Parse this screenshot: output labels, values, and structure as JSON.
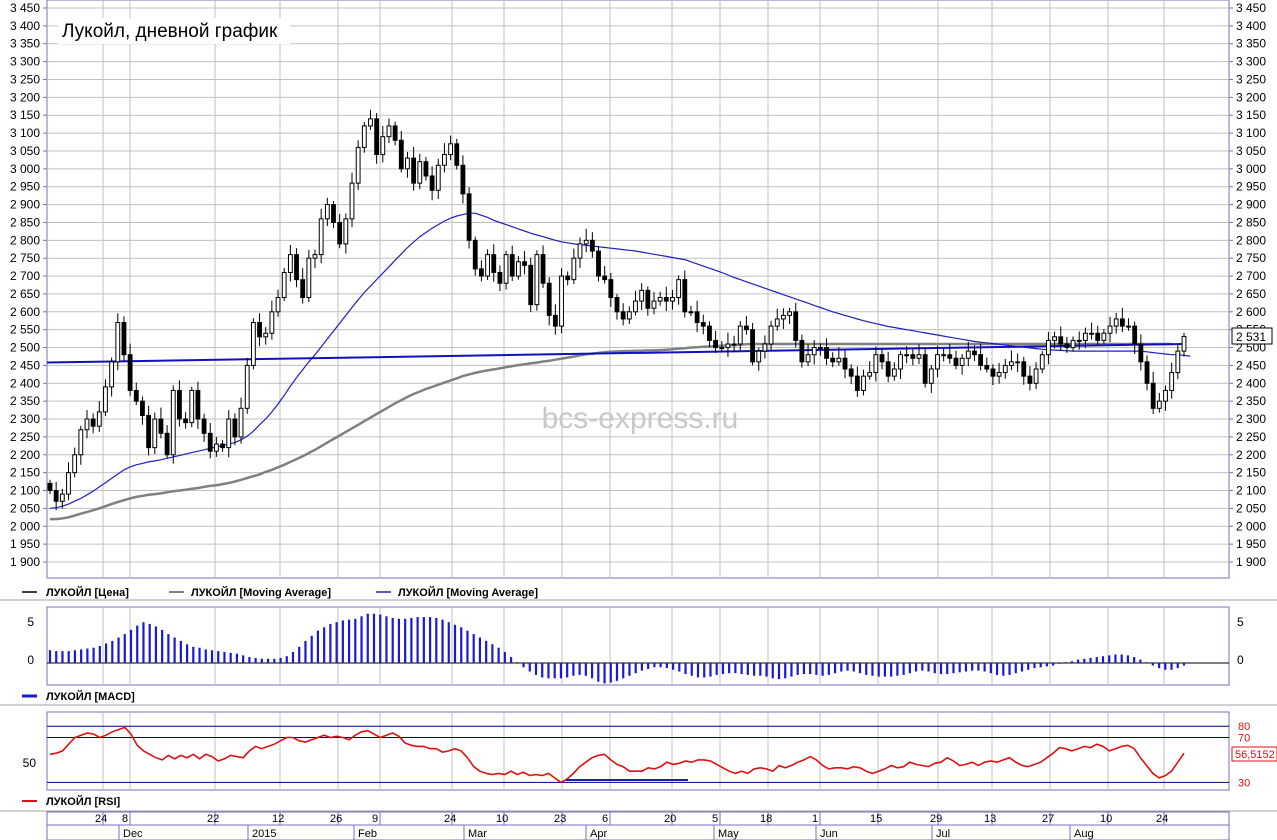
{
  "title": "Лукойл, дневной график",
  "watermark": "bcs-express.ru",
  "colors": {
    "grid": "#c0c0c0",
    "axis": "#7070c0",
    "ma_long": "#808080",
    "ma_short": "#2020c0",
    "trend": "#1010c0",
    "macd": "#1a1ad0",
    "rsi": "#dd1111",
    "rsi_ref": "#000080",
    "candle": "#000000",
    "watermark": "#c8c8c8"
  },
  "chart_data": [
    {
      "type": "candlestick",
      "title": "Лукойл, дневной график",
      "ylim": [
        1900,
        3450
      ],
      "y_ticks": [
        "1 900",
        "1 950",
        "2 000",
        "2 050",
        "2 100",
        "2 150",
        "2 200",
        "2 250",
        "2 300",
        "2 350",
        "2 400",
        "2 450",
        "2 500",
        "2 550",
        "2 600",
        "2 650",
        "2 700",
        "2 750",
        "2 800",
        "2 850",
        "2 900",
        "2 950",
        "3 000",
        "3 050",
        "3 100",
        "3 150",
        "3 200",
        "3 250",
        "3 300",
        "3 350",
        "3 400",
        "3 450"
      ],
      "last_price_label": "2 531",
      "legend": [
        "ЛУКОЙЛ [Цена]",
        "ЛУКОЙЛ [Moving Average]",
        "ЛУКОЙЛ [Moving Average]"
      ],
      "closes": [
        2100,
        2070,
        2090,
        2150,
        2200,
        2270,
        2300,
        2280,
        2320,
        2390,
        2460,
        2570,
        2480,
        2380,
        2350,
        2310,
        2220,
        2300,
        2260,
        2200,
        2380,
        2300,
        2290,
        2380,
        2300,
        2260,
        2210,
        2230,
        2220,
        2300,
        2250,
        2330,
        2450,
        2570,
        2530,
        2540,
        2600,
        2640,
        2710,
        2760,
        2690,
        2640,
        2750,
        2760,
        2860,
        2900,
        2850,
        2790,
        2860,
        2960,
        3060,
        3120,
        3140,
        3040,
        3090,
        3120,
        3080,
        3000,
        3030,
        2960,
        3020,
        2980,
        2940,
        3010,
        3040,
        3070,
        3010,
        2930,
        2800,
        2720,
        2700,
        2760,
        2710,
        2680,
        2760,
        2700,
        2740,
        2730,
        2620,
        2760,
        2680,
        2590,
        2560,
        2700,
        2690,
        2750,
        2790,
        2800,
        2770,
        2700,
        2690,
        2640,
        2600,
        2580,
        2600,
        2630,
        2660,
        2610,
        2630,
        2640,
        2630,
        2640,
        2690,
        2600,
        2600,
        2570,
        2560,
        2520,
        2500,
        2500,
        2510,
        2510,
        2560,
        2550,
        2460,
        2490,
        2510,
        2560,
        2580,
        2590,
        2600,
        2520,
        2460,
        2480,
        2500,
        2500,
        2470,
        2460,
        2470,
        2440,
        2420,
        2380,
        2420,
        2430,
        2480,
        2460,
        2420,
        2440,
        2480,
        2480,
        2470,
        2480,
        2400,
        2440,
        2480,
        2480,
        2470,
        2450,
        2470,
        2490,
        2480,
        2450,
        2440,
        2420,
        2430,
        2450,
        2460,
        2460,
        2420,
        2400,
        2440,
        2480,
        2520,
        2530,
        2510,
        2500,
        2520,
        2520,
        2540,
        2540,
        2520,
        2540,
        2560,
        2580,
        2560,
        2560,
        2510,
        2460,
        2400,
        2330,
        2350,
        2380,
        2430,
        2490,
        2531
      ],
      "sma200": [
        2020,
        2020,
        2022,
        2025,
        2030,
        2035,
        2040,
        2045,
        2050,
        2056,
        2062,
        2068,
        2073,
        2078,
        2082,
        2085,
        2088,
        2090,
        2092,
        2095,
        2098,
        2100,
        2102,
        2105,
        2107,
        2110,
        2113,
        2115,
        2118,
        2121,
        2125,
        2130,
        2135,
        2140,
        2145,
        2152,
        2158,
        2165,
        2172,
        2180,
        2188,
        2196,
        2205,
        2214,
        2224,
        2234,
        2244,
        2254,
        2264,
        2274,
        2284,
        2294,
        2304,
        2314,
        2324,
        2334,
        2344,
        2353,
        2362,
        2370,
        2377,
        2384,
        2390,
        2396,
        2402,
        2408,
        2414,
        2420,
        2425,
        2429,
        2433,
        2436,
        2439,
        2442,
        2445,
        2448,
        2451,
        2453,
        2456,
        2458,
        2461,
        2463,
        2466,
        2469,
        2472,
        2475,
        2478,
        2481,
        2483,
        2485,
        2487,
        2488,
        2489,
        2490,
        2490,
        2491,
        2491,
        2492,
        2492,
        2493,
        2494,
        2495,
        2497,
        2498,
        2500,
        2501,
        2502,
        2503,
        2504,
        2505,
        2506,
        2507,
        2508,
        2509,
        2510,
        2510,
        2510,
        2510,
        2510,
        2510,
        2510,
        2510,
        2510,
        2510,
        2510,
        2510,
        2510,
        2510,
        2510,
        2510,
        2510,
        2510,
        2510,
        2510,
        2510,
        2510,
        2510,
        2510,
        2510,
        2510,
        2510,
        2510,
        2510,
        2510,
        2510,
        2510,
        2510,
        2510,
        2510,
        2510,
        2510,
        2510,
        2510,
        2510,
        2510,
        2510,
        2510,
        2510,
        2510,
        2510,
        2510,
        2510,
        2510,
        2510,
        2510,
        2510,
        2510,
        2510,
        2510,
        2510,
        2510,
        2510,
        2510,
        2510,
        2510,
        2510,
        2510,
        2510,
        2510,
        2510,
        2510,
        2510,
        2510
      ],
      "sma50": [
        2050,
        2052,
        2056,
        2062,
        2070,
        2078,
        2088,
        2098,
        2110,
        2122,
        2134,
        2146,
        2158,
        2166,
        2172,
        2176,
        2180,
        2183,
        2186,
        2190,
        2194,
        2198,
        2202,
        2206,
        2210,
        2214,
        2218,
        2222,
        2226,
        2230,
        2234,
        2242,
        2252,
        2266,
        2284,
        2300,
        2320,
        2342,
        2366,
        2392,
        2416,
        2438,
        2460,
        2480,
        2502,
        2524,
        2546,
        2568,
        2590,
        2612,
        2634,
        2654,
        2672,
        2690,
        2708,
        2726,
        2744,
        2762,
        2780,
        2795,
        2810,
        2822,
        2834,
        2844,
        2854,
        2862,
        2868,
        2872,
        2876,
        2876,
        2870,
        2864,
        2856,
        2850,
        2844,
        2838,
        2832,
        2826,
        2820,
        2815,
        2810,
        2805,
        2800,
        2796,
        2793,
        2790,
        2788,
        2786,
        2784,
        2782,
        2780,
        2778,
        2776,
        2774,
        2772,
        2770,
        2767,
        2764,
        2761,
        2758,
        2755,
        2752,
        2749,
        2746,
        2740,
        2734,
        2728,
        2722,
        2716,
        2710,
        2703,
        2696,
        2690,
        2684,
        2678,
        2672,
        2666,
        2660,
        2654,
        2648,
        2642,
        2636,
        2630,
        2624,
        2618,
        2612,
        2606,
        2600,
        2595,
        2590,
        2585,
        2580,
        2575,
        2571,
        2567,
        2563,
        2559,
        2556,
        2553,
        2550,
        2547,
        2544,
        2541,
        2538,
        2535,
        2532,
        2529,
        2526,
        2523,
        2520,
        2517,
        2515,
        2513,
        2511,
        2509,
        2507,
        2505,
        2503,
        2501,
        2499,
        2497,
        2495,
        2494,
        2493,
        2492,
        2491,
        2490,
        2490,
        2490,
        2490,
        2490,
        2490,
        2490,
        2490,
        2490,
        2490,
        2490,
        2490,
        2488,
        2486,
        2484,
        2482,
        2480,
        2480,
        2478,
        2476
      ],
      "trendline": [
        2458,
        2510
      ]
    },
    {
      "type": "bar",
      "title": "",
      "legend": [
        "ЛУКОЙЛ [MACD]"
      ],
      "y_ticks": [
        "5",
        "0"
      ],
      "ylim": [
        -2,
        6
      ],
      "values": [
        1.5,
        1.4,
        1.4,
        1.4,
        1.5,
        1.6,
        1.7,
        1.8,
        2.0,
        2.3,
        2.6,
        3.0,
        3.4,
        3.9,
        4.4,
        4.8,
        4.6,
        4.3,
        3.9,
        3.4,
        3.0,
        2.6,
        2.2,
        1.9,
        1.8,
        1.6,
        1.5,
        1.4,
        1.3,
        1.2,
        1.1,
        0.9,
        0.7,
        0.6,
        0.5,
        0.5,
        0.5,
        0.6,
        0.8,
        1.3,
        1.9,
        2.6,
        3.2,
        3.8,
        4.2,
        4.6,
        4.8,
        5.0,
        5.1,
        5.2,
        5.5,
        5.8,
        5.8,
        5.7,
        5.5,
        5.3,
        5.2,
        5.2,
        5.3,
        5.4,
        5.4,
        5.4,
        5.3,
        5.1,
        4.8,
        4.5,
        4.2,
        3.8,
        3.4,
        3.0,
        2.6,
        2.2,
        1.8,
        1.3,
        0.7,
        0.1,
        -0.5,
        -1.0,
        -1.4,
        -1.7,
        -1.8,
        -1.8,
        -1.8,
        -1.7,
        -1.5,
        -1.4,
        -1.5,
        -1.8,
        -2.2,
        -2.4,
        -2.3,
        -2.1,
        -1.8,
        -1.5,
        -1.2,
        -0.9,
        -0.7,
        -0.5,
        -0.5,
        -0.6,
        -0.8,
        -1.0,
        -1.3,
        -1.5,
        -1.7,
        -1.7,
        -1.6,
        -1.4,
        -1.3,
        -1.2,
        -1.2,
        -1.3,
        -1.4,
        -1.5,
        -1.5,
        -1.6,
        -1.8,
        -1.9,
        -1.8,
        -1.6,
        -1.4,
        -1.3,
        -1.3,
        -1.4,
        -1.5,
        -1.4,
        -1.2,
        -1.0,
        -0.9,
        -1.0,
        -1.2,
        -1.4,
        -1.5,
        -1.6,
        -1.6,
        -1.6,
        -1.5,
        -1.4,
        -1.2,
        -1.0,
        -0.9,
        -1.0,
        -1.2,
        -1.3,
        -1.3,
        -1.2,
        -1.1,
        -1.0,
        -0.9,
        -0.9,
        -1.0,
        -1.2,
        -1.4,
        -1.5,
        -1.4,
        -1.2,
        -1.0,
        -0.8,
        -0.6,
        -0.5,
        -0.4,
        -0.3,
        -0.1,
        0.1,
        0.2,
        0.4,
        0.5,
        0.6,
        0.7,
        0.8,
        0.9,
        1.0,
        1.0,
        0.9,
        0.7,
        0.4,
        0.1,
        -0.3,
        -0.6,
        -0.8,
        -0.8,
        -0.6,
        -0.3
      ]
    },
    {
      "type": "line",
      "title": "",
      "legend": [
        "ЛУКОЙЛ [RSI]"
      ],
      "y_ticks": [
        "50"
      ],
      "ref_labels": [
        "80",
        "70",
        "30"
      ],
      "ref_levels": [
        80,
        70,
        30
      ],
      "last_value_label": "56,5152",
      "ylim": [
        25,
        90
      ],
      "values": [
        55,
        56,
        58,
        64,
        70,
        72,
        74,
        73,
        70,
        72,
        75,
        77,
        79,
        73,
        63,
        58,
        55,
        52,
        50,
        54,
        51,
        54,
        52,
        55,
        51,
        55,
        53,
        49,
        51,
        54,
        53,
        52,
        58,
        62,
        60,
        62,
        64,
        67,
        70,
        70,
        67,
        66,
        68,
        70,
        72,
        70,
        71,
        70,
        68,
        72,
        75,
        76,
        73,
        70,
        72,
        74,
        71,
        65,
        63,
        62,
        62,
        60,
        60,
        57,
        58,
        60,
        58,
        52,
        44,
        40,
        38,
        37,
        38,
        37,
        40,
        37,
        39,
        36,
        37,
        36,
        38,
        34,
        30,
        33,
        38,
        44,
        48,
        52,
        54,
        55,
        50,
        46,
        44,
        40,
        40,
        40,
        43,
        42,
        44,
        48,
        46,
        47,
        49,
        48,
        50,
        50,
        49,
        46,
        43,
        40,
        38,
        40,
        38,
        42,
        43,
        42,
        40,
        45,
        43,
        45,
        48,
        50,
        53,
        50,
        45,
        42,
        43,
        43,
        42,
        44,
        43,
        40,
        38,
        40,
        42,
        45,
        43,
        44,
        48,
        46,
        45,
        44,
        47,
        48,
        52,
        49,
        45,
        46,
        48,
        45,
        48,
        49,
        48,
        50,
        52,
        48,
        45,
        44,
        46,
        48,
        52,
        56,
        61,
        60,
        58,
        60,
        62,
        61,
        64,
        62,
        58,
        60,
        62,
        63,
        60,
        52,
        45,
        38,
        34,
        36,
        40,
        48,
        56
      ]
    }
  ],
  "x_axis": {
    "day_labels": [
      "24",
      "8",
      "22",
      "12",
      "26",
      "9",
      "24",
      "10",
      "23",
      "6",
      "20",
      "5",
      "18",
      "1",
      "15",
      "29",
      "13",
      "27",
      "10",
      "24"
    ],
    "month_labels": [
      "Dec",
      "2015",
      "Feb",
      "Mar",
      "Apr",
      "May",
      "Jun",
      "Jul",
      "Aug"
    ]
  }
}
